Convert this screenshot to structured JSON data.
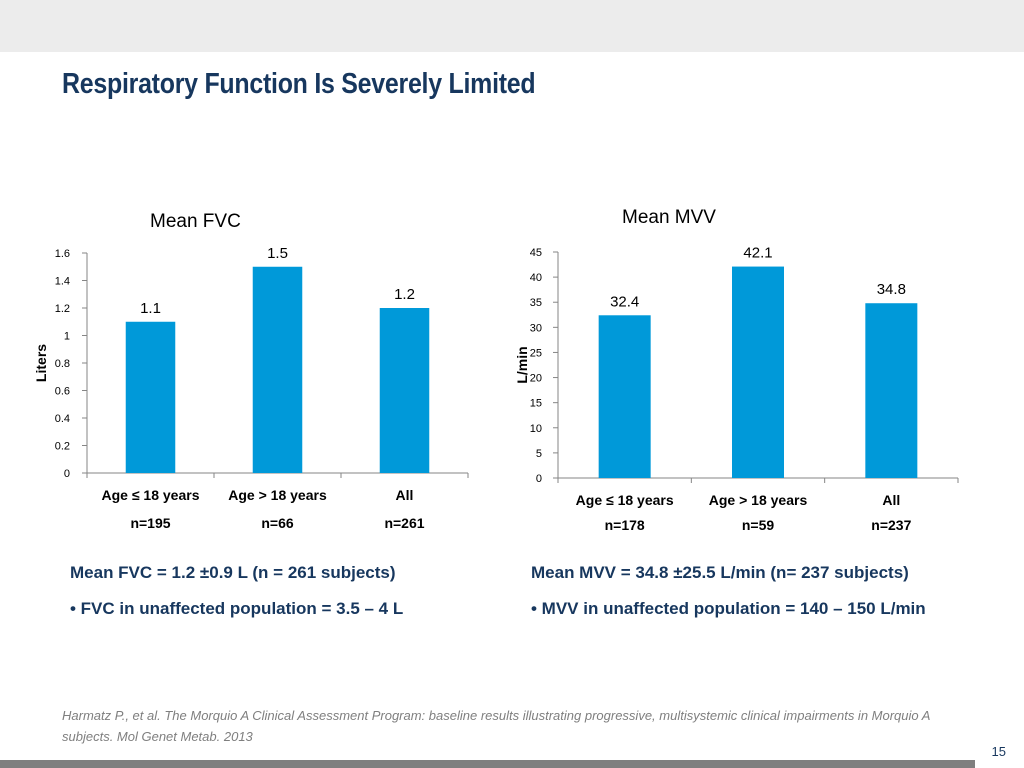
{
  "slide": {
    "title": "Respiratory Function Is Severely Limited",
    "page_number": "15",
    "citation": "Harmatz P., et al. The Morquio A Clinical Assessment Program: baseline results illustrating progressive, multisystemic clinical impairments in Morquio A subjects. Mol Genet Metab. 2013"
  },
  "summaries": {
    "fvc_mean": "Mean FVC = 1.2 ±0.9 L   (n = 261 subjects)",
    "fvc_bullet": "•  FVC in unaffected population = 3.5 – 4 L",
    "mvv_mean": "Mean MVV = 34.8 ±25.5 L/min  (n= 237 subjects)",
    "mvv_bullet": "• MVV in unaffected population = 140 – 150 L/min"
  },
  "colors": {
    "bar": "#0099d9",
    "title": "#17375e",
    "axis": "#868686",
    "text": "#000000"
  },
  "chart_data": [
    {
      "type": "bar",
      "title": "Mean FVC",
      "ylabel": "Liters",
      "xlabel": "",
      "categories": [
        "Age ≤ 18 years",
        "Age > 18 years",
        "All"
      ],
      "sample_sizes": [
        "n=195",
        "n=66",
        "n=261"
      ],
      "values": [
        1.1,
        1.5,
        1.2
      ],
      "data_labels": [
        "1.1",
        "1.5",
        "1.2"
      ],
      "ylim": [
        0,
        1.6
      ],
      "yticks": [
        0,
        0.2,
        0.4,
        0.6,
        0.8,
        1,
        1.2,
        1.4,
        1.6
      ],
      "ytick_labels": [
        "0",
        "0.2",
        "0.4",
        "0.6",
        "0.8",
        "1",
        "1.2",
        "1.4",
        "1.6"
      ],
      "grid": false,
      "legend": "none"
    },
    {
      "type": "bar",
      "title": "Mean MVV",
      "ylabel": "L/min",
      "xlabel": "",
      "categories": [
        "Age ≤ 18 years",
        "Age > 18 years",
        "All"
      ],
      "sample_sizes": [
        "n=178",
        "n=59",
        "n=237"
      ],
      "values": [
        32.4,
        42.1,
        34.8
      ],
      "data_labels": [
        "32.4",
        "42.1",
        "34.8"
      ],
      "ylim": [
        0,
        45
      ],
      "yticks": [
        0,
        5,
        10,
        15,
        20,
        25,
        30,
        35,
        40,
        45
      ],
      "ytick_labels": [
        "0",
        "5",
        "10",
        "15",
        "20",
        "25",
        "30",
        "35",
        "40",
        "45"
      ],
      "grid": false,
      "legend": "none"
    }
  ]
}
